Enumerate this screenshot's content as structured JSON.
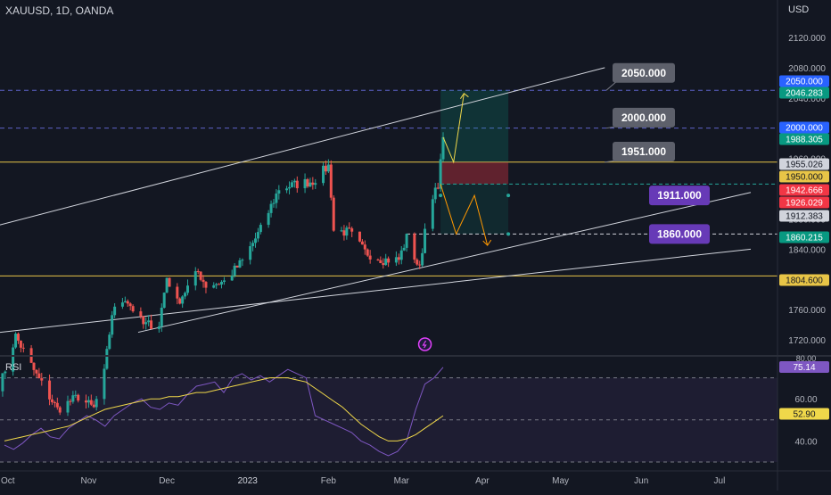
{
  "header": {
    "symbol": "XAUUSD",
    "interval": "1D",
    "broker": "OANDA",
    "title": "XAUUSD, 1D, OANDA"
  },
  "currency": "USD",
  "rsi_label": "RSI",
  "colors": {
    "bg": "#131722",
    "up": "#26a69a",
    "down": "#ef5350",
    "rsi": "#7e57c2",
    "rsi_ma": "#f0d84a",
    "level": "#e8c547"
  },
  "chart_data": [
    {
      "type": "candlestick",
      "title": "XAUUSD, 1D, OANDA",
      "ylabel": "USD",
      "ylim": [
        1700,
        2140
      ],
      "x_ticks": [
        "Oct",
        "Nov",
        "Dec",
        "2023",
        "Feb",
        "Mar",
        "Apr",
        "May",
        "Jun",
        "Jul"
      ],
      "y_ticks": [
        1720,
        1760,
        1800,
        1840,
        1880,
        1920,
        1960,
        2000,
        2040,
        2080,
        2120
      ],
      "y_tick_labels": [
        "1720.000",
        "1760.000",
        "1800.000",
        "1840.000",
        "1880.000",
        "1920.000",
        "1960.000",
        "2000.000",
        "2040.000",
        "2080.000",
        "2120.000"
      ],
      "close_path": [
        {
          "date": "2022-09-28",
          "close": 1659
        },
        {
          "date": "2022-10-04",
          "close": 1725
        },
        {
          "date": "2022-10-12",
          "close": 1673
        },
        {
          "date": "2022-10-20",
          "close": 1628
        },
        {
          "date": "2022-10-28",
          "close": 1645
        },
        {
          "date": "2022-11-03",
          "close": 1629
        },
        {
          "date": "2022-11-07",
          "close": 1676
        },
        {
          "date": "2022-11-10",
          "close": 1755
        },
        {
          "date": "2022-11-15",
          "close": 1776
        },
        {
          "date": "2022-11-22",
          "close": 1740
        },
        {
          "date": "2022-11-28",
          "close": 1741
        },
        {
          "date": "2022-12-01",
          "close": 1803
        },
        {
          "date": "2022-12-05",
          "close": 1769
        },
        {
          "date": "2022-12-13",
          "close": 1810
        },
        {
          "date": "2022-12-16",
          "close": 1792
        },
        {
          "date": "2022-12-23",
          "close": 1797
        },
        {
          "date": "2022-12-30",
          "close": 1824
        },
        {
          "date": "2023-01-06",
          "close": 1866
        },
        {
          "date": "2023-01-13",
          "close": 1920
        },
        {
          "date": "2023-01-20",
          "close": 1926
        },
        {
          "date": "2023-01-26",
          "close": 1930
        },
        {
          "date": "2023-02-01",
          "close": 1950
        },
        {
          "date": "2023-02-02",
          "close": 1913
        },
        {
          "date": "2023-02-03",
          "close": 1865
        },
        {
          "date": "2023-02-09",
          "close": 1862
        },
        {
          "date": "2023-02-15",
          "close": 1836
        },
        {
          "date": "2023-02-22",
          "close": 1826
        },
        {
          "date": "2023-02-28",
          "close": 1826
        },
        {
          "date": "2023-03-03",
          "close": 1855
        },
        {
          "date": "2023-03-08",
          "close": 1813
        },
        {
          "date": "2023-03-10",
          "close": 1867
        },
        {
          "date": "2023-03-13",
          "close": 1913
        },
        {
          "date": "2023-03-15",
          "close": 1918
        },
        {
          "date": "2023-03-17",
          "close": 1988
        }
      ],
      "horizontal_levels": [
        {
          "price": 2050,
          "style": "dashed",
          "color": "#5d62c8"
        },
        {
          "price": 2000,
          "style": "dashed",
          "color": "#5d62c8"
        },
        {
          "price": 1955.026,
          "style": "solid",
          "color": "#e8c547"
        },
        {
          "price": 1804.6,
          "style": "solid",
          "color": "#e8c547"
        }
      ],
      "trendlines": [
        {
          "from": {
            "date": "2022-09-28",
            "price": 1872
          },
          "to": {
            "date": "2023-05-18",
            "price": 2080
          }
        },
        {
          "from": {
            "date": "2022-09-28",
            "price": 1730
          },
          "to": {
            "date": "2023-07-13",
            "price": 1840
          }
        },
        {
          "from": {
            "date": "2022-11-20",
            "price": 1730
          },
          "to": {
            "date": "2023-07-13",
            "price": 1915
          }
        }
      ],
      "callouts": [
        {
          "label": "2050.000",
          "theme": "gray"
        },
        {
          "label": "2000.000",
          "theme": "gray"
        },
        {
          "label": "1951.000",
          "theme": "gray"
        },
        {
          "label": "1911.000",
          "theme": "purple"
        },
        {
          "label": "1860.000",
          "theme": "purple"
        }
      ],
      "position_tool": {
        "target": 2050,
        "entry": 1955,
        "stop": 1926,
        "alt_low": 1860,
        "from": "2023-03-16",
        "to": "2023-04-11"
      },
      "price_tags": [
        {
          "label": "2050.000",
          "price": 2050,
          "bg": "#2962ff",
          "fg": "#ffffff"
        },
        {
          "label": "2046.283",
          "price": 2046.283,
          "bg": "#089981",
          "fg": "#ffffff"
        },
        {
          "label": "2000.000",
          "price": 2000,
          "bg": "#2962ff",
          "fg": "#ffffff"
        },
        {
          "label": "1988.305",
          "price": 1988.305,
          "bg": "#089981",
          "fg": "#ffffff"
        },
        {
          "label": "1955.026",
          "price": 1955.026,
          "bg": "#d1d4dc",
          "fg": "#131722"
        },
        {
          "label": "1950.000",
          "price": 1950,
          "bg": "#e8c547",
          "fg": "#131722"
        },
        {
          "label": "1942.666",
          "price": 1942.666,
          "bg": "#f23645",
          "fg": "#ffffff"
        },
        {
          "label": "1926.029",
          "price": 1926.029,
          "bg": "#f23645",
          "fg": "#ffffff"
        },
        {
          "label": "1912.383",
          "price": 1912.383,
          "bg": "#d1d4dc",
          "fg": "#131722"
        },
        {
          "label": "1860.215",
          "price": 1860.215,
          "bg": "#089981",
          "fg": "#ffffff"
        },
        {
          "label": "1804.600",
          "price": 1804.6,
          "bg": "#e8c547",
          "fg": "#131722"
        }
      ]
    },
    {
      "type": "line",
      "title": "RSI",
      "ylim": [
        30,
        80
      ],
      "y_ticks": [
        40,
        60,
        80
      ],
      "y_tick_labels": [
        "40.00",
        "60.00",
        "80.00"
      ],
      "bands": [
        70,
        50,
        30
      ],
      "series": [
        {
          "values": [
            38,
            36,
            39,
            43,
            46,
            42,
            41,
            46,
            49,
            52,
            50,
            47,
            52,
            55,
            58,
            60,
            56,
            55,
            58,
            57,
            62,
            66,
            67,
            68,
            63,
            70,
            72,
            69,
            71,
            68,
            71,
            74,
            72,
            70,
            52,
            50,
            48,
            46,
            44,
            40,
            38,
            35,
            33,
            35,
            40,
            55,
            67,
            70,
            75
          ]
        },
        {
          "values": [
            40,
            41,
            42,
            43,
            44,
            45,
            46,
            47,
            49,
            51,
            53,
            55,
            56,
            57,
            58,
            59,
            60,
            60,
            61,
            61,
            62,
            63,
            63,
            64,
            65,
            66,
            67,
            68,
            69,
            70,
            70,
            70,
            69,
            68,
            65,
            62,
            59,
            56,
            52,
            48,
            45,
            42,
            40,
            40,
            41,
            43,
            46,
            49,
            52
          ]
        }
      ],
      "value_tags": [
        {
          "label": "75.14",
          "value": 75.14,
          "bg": "#7e57c2"
        },
        {
          "label": "52.90",
          "value": 52.9,
          "bg": "#f0d84a"
        }
      ]
    }
  ]
}
